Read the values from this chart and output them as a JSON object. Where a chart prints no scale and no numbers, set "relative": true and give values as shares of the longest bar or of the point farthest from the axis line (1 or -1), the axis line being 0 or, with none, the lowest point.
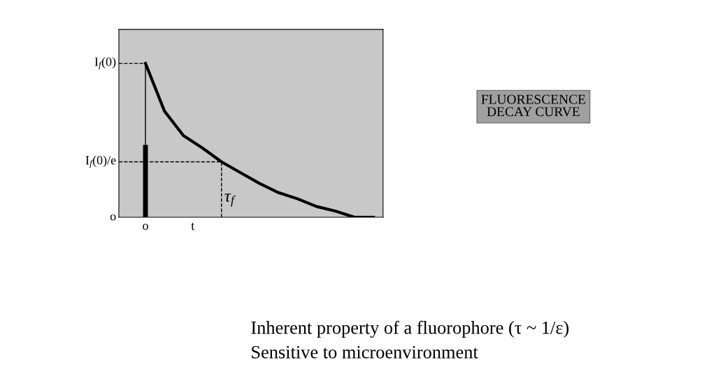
{
  "chart_data": {
    "type": "line",
    "relative": true,
    "categories": [
      null,
      null,
      null,
      null,
      null,
      null,
      null,
      null,
      null,
      null,
      null,
      null,
      null
    ],
    "series": [
      {
        "color": "#000000",
        "values": [
          1,
          0.69,
          0.53,
          0.45,
          0.36,
          0.29,
          0.22,
          0.16,
          0.12,
          0.07,
          0.04,
          0,
          0
        ]
      }
    ],
    "xlabel": "t",
    "ref_lines": [
      {
        "axis": "y",
        "value": 1,
        "label": "I$_{f}$(0)",
        "line_style": "dashed",
        "color": "#000000"
      },
      {
        "axis": "y",
        "value": 0.36,
        "label": "I$_{f}$(0)/e",
        "line_style": "dashed",
        "color": "#000000"
      }
    ],
    "annotations": [
      "τ$_{f}$",
      "o",
      "o",
      "FLUORESCENCE\nDECAY CURVE",
      "Inherent property of a fluorophore (τ ~ 1/ε)\nSensitive to microenvironment"
    ],
    "grid": false,
    "marker": "none",
    "line_style": "solid"
  }
}
